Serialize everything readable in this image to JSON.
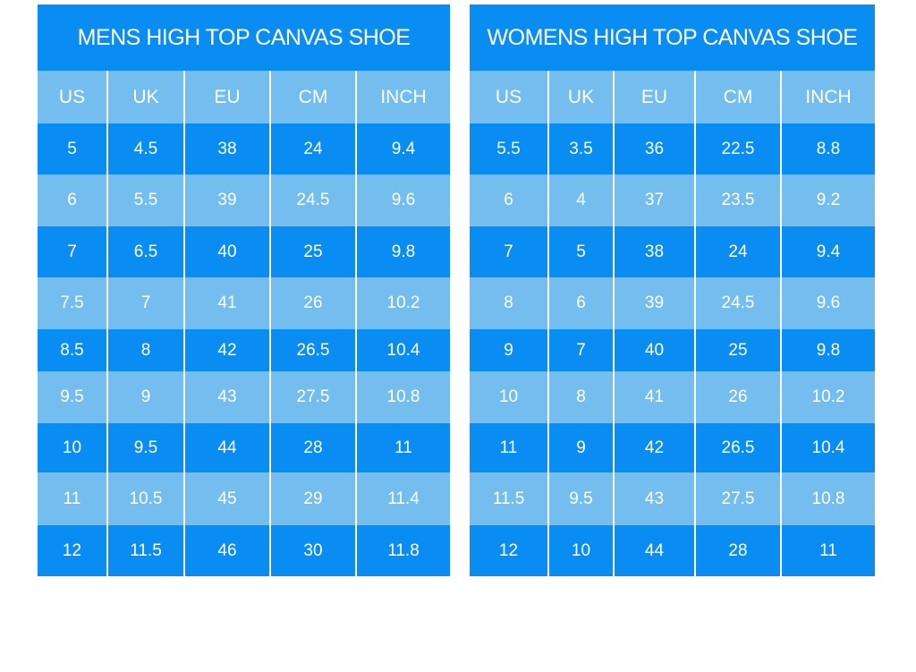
{
  "tables": [
    {
      "title": "MENS HIGH TOP CANVAS SHOE",
      "headers": [
        "US",
        "UK",
        "EU",
        "CM",
        "INCH"
      ],
      "rows": [
        [
          "5",
          "4.5",
          "38",
          "24",
          "9.4"
        ],
        [
          "6",
          "5.5",
          "39",
          "24.5",
          "9.6"
        ],
        [
          "7",
          "6.5",
          "40",
          "25",
          "9.8"
        ],
        [
          "7.5",
          "7",
          "41",
          "26",
          "10.2"
        ],
        [
          "8.5",
          "8",
          "42",
          "26.5",
          "10.4"
        ],
        [
          "9.5",
          "9",
          "43",
          "27.5",
          "10.8"
        ],
        [
          "10",
          "9.5",
          "44",
          "28",
          "11"
        ],
        [
          "11",
          "10.5",
          "45",
          "29",
          "11.4"
        ],
        [
          "12",
          "11.5",
          "46",
          "30",
          "11.8"
        ]
      ]
    },
    {
      "title": "WOMENS HIGH TOP CANVAS SHOE",
      "headers": [
        "US",
        "UK",
        "EU",
        "CM",
        "INCH"
      ],
      "rows": [
        [
          "5.5",
          "3.5",
          "36",
          "22.5",
          "8.8"
        ],
        [
          "6",
          "4",
          "37",
          "23.5",
          "9.2"
        ],
        [
          "7",
          "5",
          "38",
          "24",
          "9.4"
        ],
        [
          "8",
          "6",
          "39",
          "24.5",
          "9.6"
        ],
        [
          "9",
          "7",
          "40",
          "25",
          "9.8"
        ],
        [
          "10",
          "8",
          "41",
          "26",
          "10.2"
        ],
        [
          "11",
          "9",
          "42",
          "26.5",
          "10.4"
        ],
        [
          "11.5",
          "9.5",
          "43",
          "27.5",
          "10.8"
        ],
        [
          "12",
          "10",
          "44",
          "28",
          "11"
        ]
      ]
    }
  ]
}
